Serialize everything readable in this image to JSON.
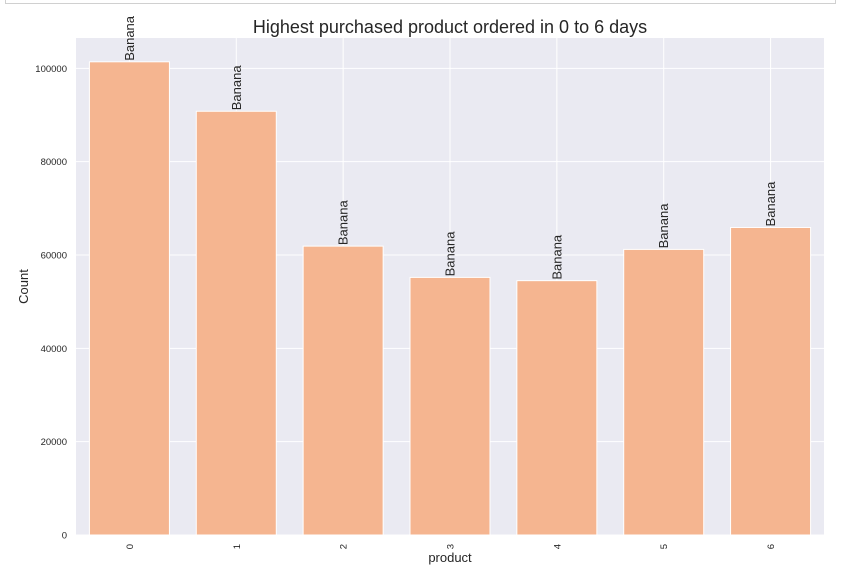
{
  "chart_data": {
    "type": "bar",
    "title": "Highest purchased product ordered in 0 to 6 days",
    "xlabel": "product",
    "ylabel": "Count",
    "categories": [
      "0",
      "1",
      "2",
      "3",
      "4",
      "5",
      "6"
    ],
    "values": [
      101400,
      90800,
      61900,
      55200,
      54500,
      61200,
      65900
    ],
    "bar_labels": [
      "Banana",
      "Banana",
      "Banana",
      "Banana",
      "Banana",
      "Banana",
      "Banana"
    ],
    "ylim": [
      0,
      106500
    ],
    "yticks": [
      0,
      20000,
      40000,
      60000,
      80000,
      100000
    ],
    "grid": true,
    "bar_color": "#f5b590",
    "background_color": "#eaeaf2",
    "grid_color": "#ffffff"
  }
}
